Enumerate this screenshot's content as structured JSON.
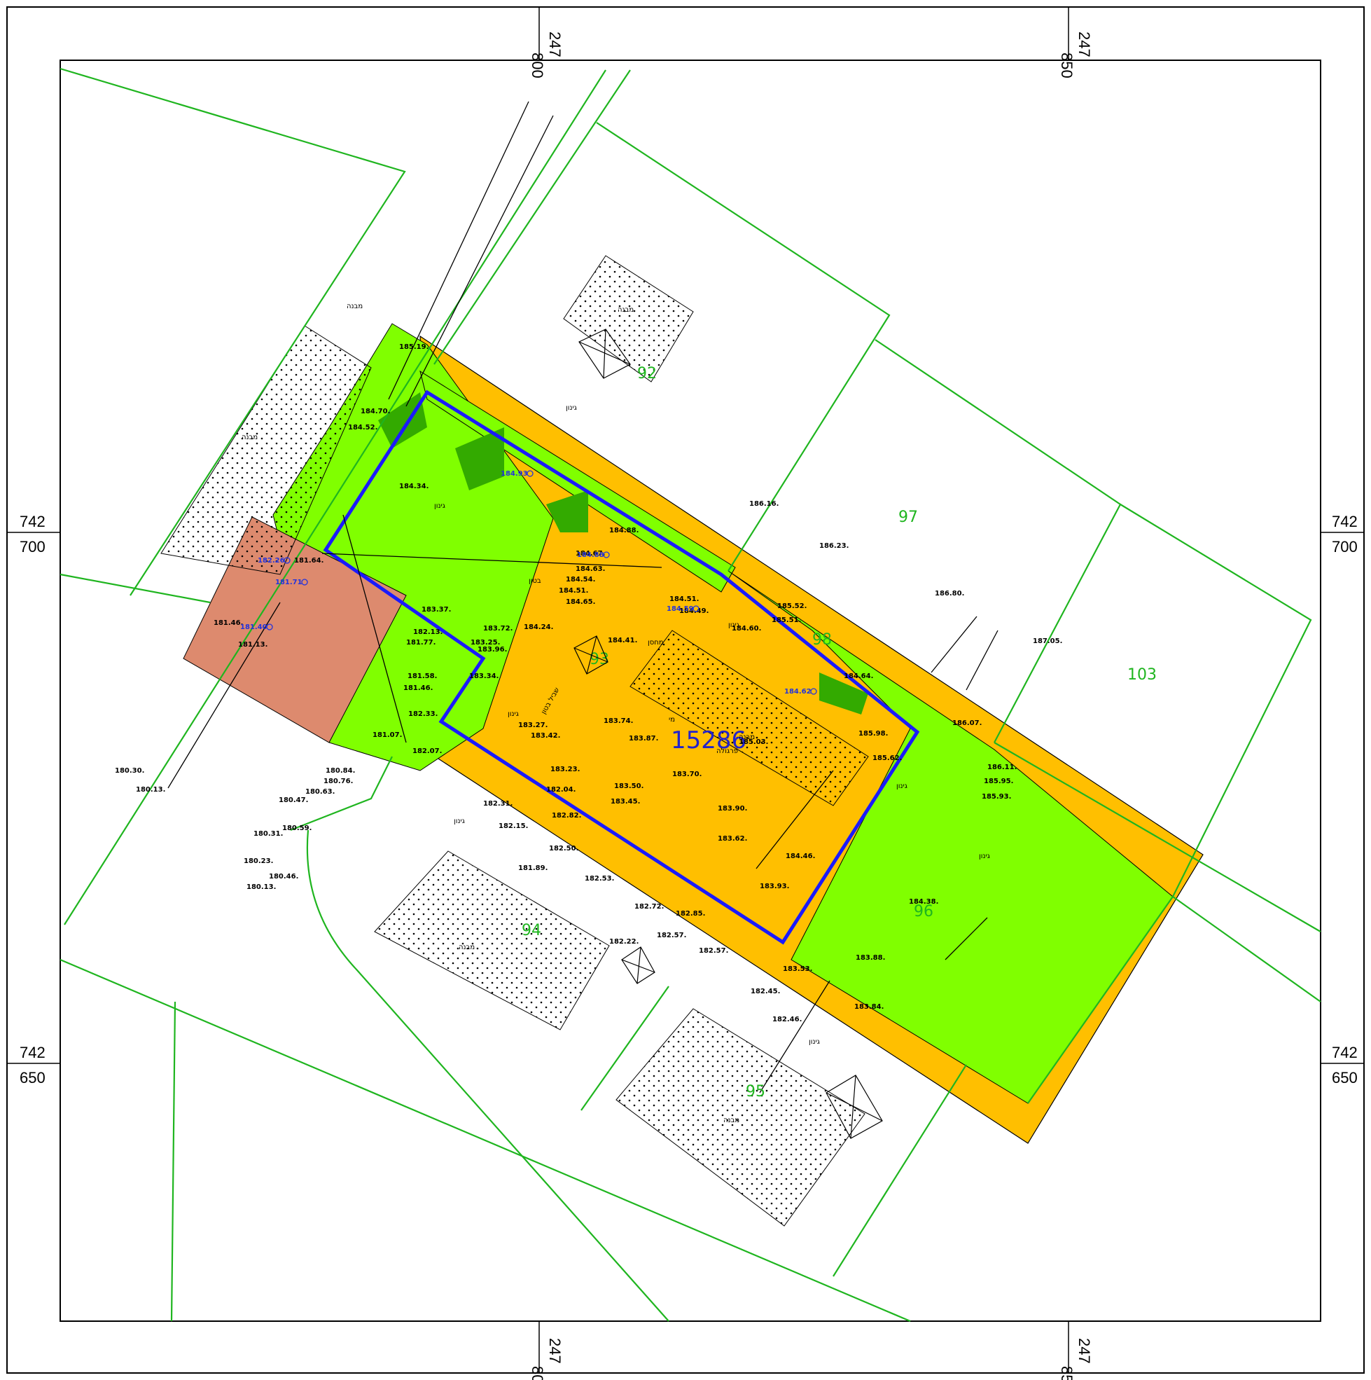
{
  "colors": {
    "parcel_line": "#1fb51f",
    "lime_fill": "#80ff00",
    "orange_fill": "#ffbf00",
    "salmon_fill": "#dd8a6e",
    "dark_green_fill": "#33aa00",
    "boundary_blue": "#1a1aff",
    "frame": "#000000"
  },
  "grid_labels": {
    "top_x": [
      {
        "a": "800",
        "b": "247"
      },
      {
        "a": "850",
        "b": "247"
      }
    ],
    "bottom_x": [
      {
        "a": "800",
        "b": "247"
      },
      {
        "a": "850",
        "b": "247"
      }
    ],
    "left_y": [
      {
        "a": "742",
        "b": "700"
      },
      {
        "a": "742",
        "b": "650"
      }
    ],
    "right_y": [
      {
        "a": "742",
        "b": "700"
      },
      {
        "a": "742",
        "b": "650"
      }
    ]
  },
  "main_parcel": "15286",
  "parcel_numbers": [
    "92",
    "97",
    "103",
    "93",
    "98",
    "96",
    "94",
    "95"
  ],
  "elevations": [
    "185.19",
    "184.70",
    "184.52",
    "184.34",
    "184.88",
    "184.67",
    "184.63",
    "184.54",
    "184.51",
    "184.65",
    "186.16",
    "186.23",
    "186.80",
    "187.05",
    "185.52",
    "185.51",
    "184.51",
    "184.49",
    "184.60",
    "184.41",
    "183.72",
    "183.25",
    "183.96",
    "184.24",
    "183.37",
    "182.13",
    "181.77",
    "183.34",
    "181.58",
    "181.46",
    "181.07",
    "182.33",
    "182.07",
    "183.27",
    "183.42",
    "183.74",
    "183.87",
    "185.03",
    "183.23",
    "183.50",
    "183.45",
    "182.04",
    "182.31",
    "182.15",
    "182.82",
    "182.50",
    "181.89",
    "182.53",
    "183.70",
    "183.90",
    "183.62",
    "184.46",
    "183.93",
    "182.72",
    "182.85",
    "182.57",
    "182.22",
    "182.57",
    "183.53",
    "183.88",
    "184.38",
    "182.45",
    "182.46",
    "183.84",
    "185.98",
    "185.62",
    "186.11",
    "185.95",
    "185.93",
    "186.07",
    "184.64",
    "181.64",
    "181.46",
    "181.13",
    "180.84",
    "180.76",
    "180.63",
    "180.47",
    "180.59",
    "180.31",
    "180.23",
    "180.46",
    "180.13",
    "180.30",
    "180.13"
  ],
  "elevations_blue": [
    "184.93",
    "184.88",
    "184.59",
    "184.62",
    "182.26",
    "181.71",
    "181.40"
  ],
  "hebrew_labels": {
    "building": "מבנה",
    "garden": "גינון",
    "concrete": "בטון",
    "path": "שביל",
    "stairs": "מדרגות",
    "storage": "מחסן",
    "fence": "גדר",
    "gate": "שער",
    "water": "מי",
    "pergola": "פרגולה",
    "parking": "חניה",
    "sewer": "קו ביוב",
    "wall": "קיר",
    "shed": "סככה",
    "pipe": "קו תקשורת",
    "shed_top": "סככה",
    "concrete_path": "שביל בטון"
  }
}
